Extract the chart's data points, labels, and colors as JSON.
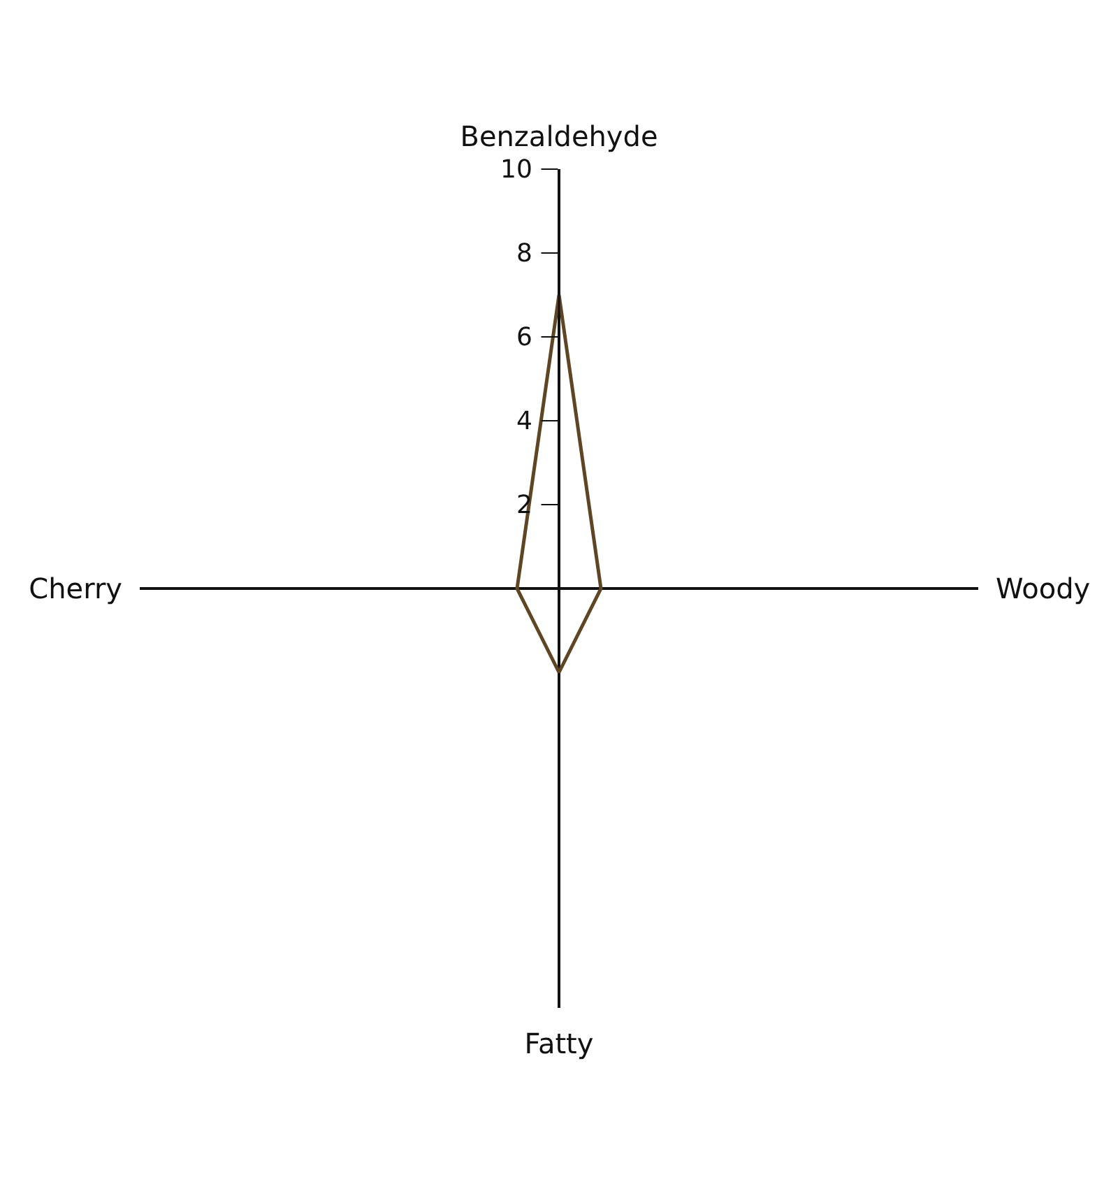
{
  "chart_data": {
    "type": "radar",
    "categories": [
      "Benzaldehyde",
      "Woody",
      "Fatty",
      "Cherry"
    ],
    "series": [
      {
        "color": "#5e4524",
        "values": [
          7,
          1,
          2,
          1
        ]
      }
    ],
    "ylim": [
      0,
      10
    ],
    "yticks": [
      2,
      4,
      6,
      8,
      10
    ],
    "grid": false,
    "marker": "none"
  }
}
